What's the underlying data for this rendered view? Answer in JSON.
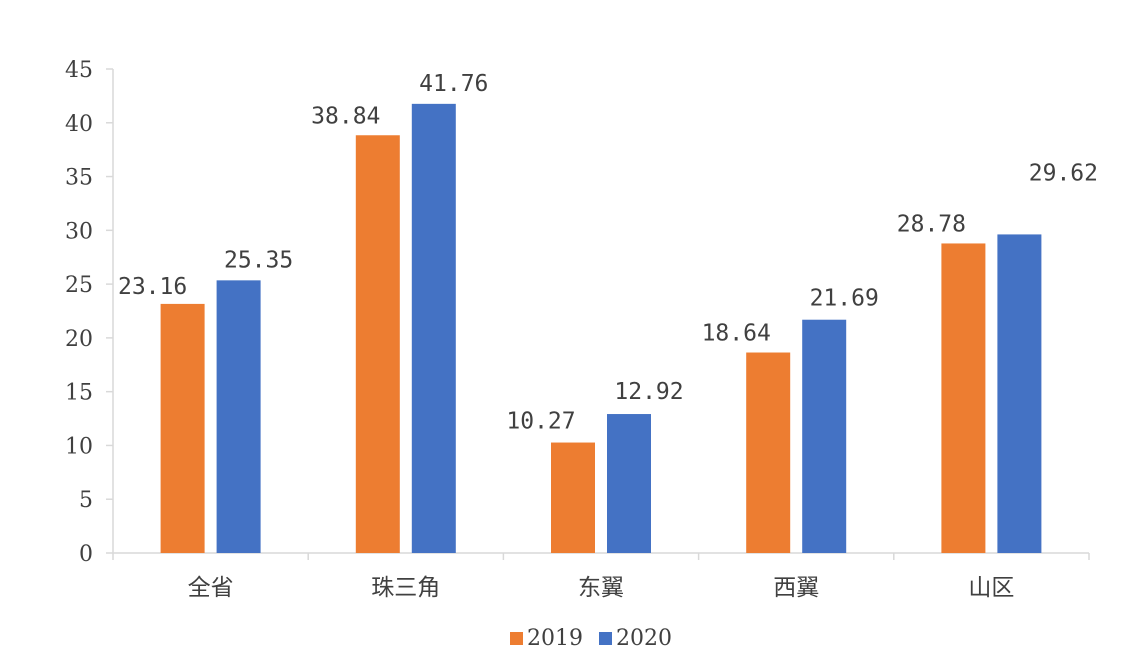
{
  "chart_data": {
    "type": "bar",
    "title": "",
    "xlabel": "",
    "ylabel": "",
    "categories": [
      "全省",
      "珠三角",
      "东翼",
      "西翼",
      "山区"
    ],
    "series": [
      {
        "name": "2019",
        "color": "#ED7D31",
        "values": [
          23.16,
          38.84,
          10.27,
          18.64,
          28.78
        ],
        "labels": [
          "23.16",
          "38.84",
          "10.27",
          "18.64",
          "28.78"
        ]
      },
      {
        "name": "2020",
        "color": "#4472C4",
        "values": [
          25.35,
          41.76,
          12.92,
          21.69,
          29.62
        ],
        "labels": [
          "25.35",
          "41.76",
          "12.92",
          "21.69",
          "29.62"
        ]
      }
    ],
    "ylim": [
      0,
      45
    ],
    "yticks": [
      0,
      5,
      10,
      15,
      20,
      25,
      30,
      35,
      40,
      45
    ],
    "grid": false,
    "legend_position": "bottom"
  }
}
